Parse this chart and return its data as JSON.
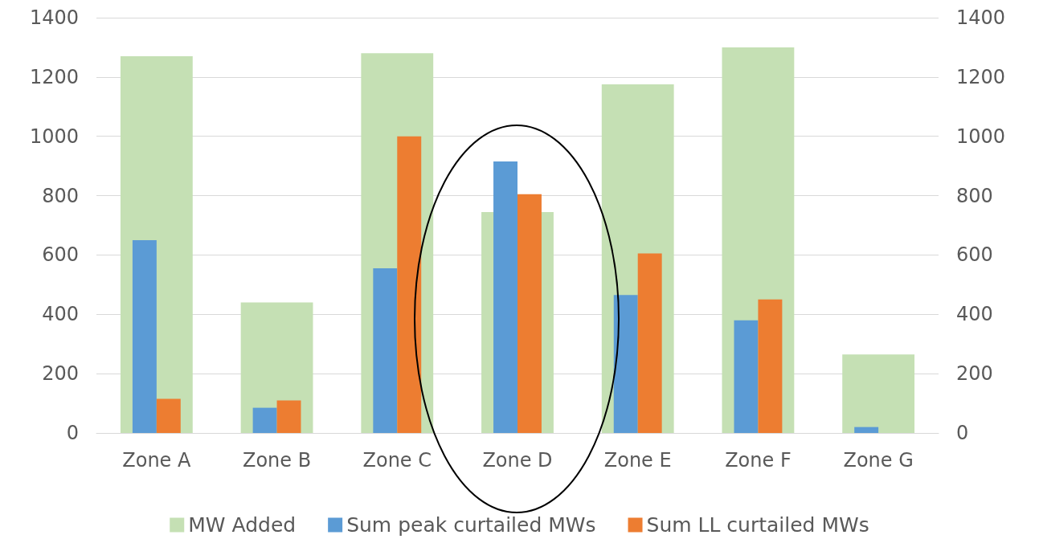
{
  "chart_data": {
    "type": "bar",
    "categories": [
      "Zone A",
      "Zone B",
      "Zone C",
      "Zone D",
      "Zone E",
      "Zone F",
      "Zone G"
    ],
    "series": [
      {
        "name": "MW Added",
        "color": "#c5e0b4",
        "axis": "y2",
        "values": [
          1270,
          440,
          1280,
          745,
          1175,
          1300,
          265
        ]
      },
      {
        "name": "Sum peak curtailed MWs",
        "color": "#5b9bd5",
        "values": [
          650,
          85,
          555,
          915,
          465,
          380,
          20
        ]
      },
      {
        "name": "Sum LL curtailed MWs",
        "color": "#ed7d31",
        "values": [
          115,
          110,
          1000,
          805,
          605,
          450,
          null
        ]
      }
    ],
    "ylim": [
      0,
      1400
    ],
    "yticks": [
      0,
      200,
      400,
      600,
      800,
      1000,
      1200,
      1400
    ],
    "y2lim": [
      0,
      1400
    ],
    "y2ticks": [
      0,
      200,
      400,
      600,
      800,
      1000,
      1200,
      1400
    ],
    "grid": "y",
    "legend": "bottom"
  }
}
